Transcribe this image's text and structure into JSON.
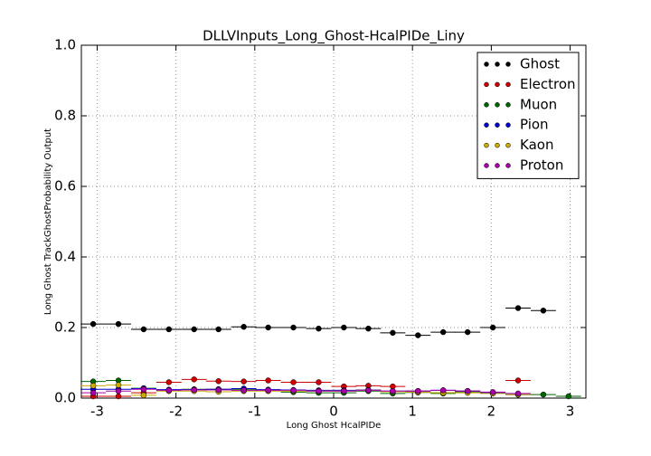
{
  "chart_data": {
    "type": "scatter",
    "title": "DLLVInputs_Long_Ghost-HcalPIDe_Liny",
    "x_label": "Long Ghost HcalPIDe",
    "y_label": "Long Ghost TrackGhostProbability Output",
    "x": [
      -3.05,
      -2.73,
      -2.41,
      -2.09,
      -1.77,
      -1.46,
      -1.14,
      -0.83,
      -0.51,
      -0.19,
      0.13,
      0.44,
      0.75,
      1.07,
      1.39,
      1.7,
      2.02,
      2.34,
      2.66,
      2.98
    ],
    "xerr": 0.16,
    "series": [
      {
        "name": "Ghost",
        "color": "#000000",
        "values": [
          0.21,
          0.21,
          0.195,
          0.195,
          0.195,
          0.195,
          0.202,
          0.2,
          0.2,
          0.197,
          0.2,
          0.197,
          0.185,
          0.178,
          0.187,
          0.187,
          0.2,
          0.255,
          0.248,
          null
        ]
      },
      {
        "name": "Electron",
        "color": "#cc0000",
        "values": [
          0.005,
          0.005,
          0.015,
          0.045,
          0.053,
          0.048,
          0.047,
          0.05,
          0.045,
          0.045,
          0.033,
          0.035,
          0.033,
          0.02,
          0.015,
          0.02,
          0.015,
          0.05,
          null,
          null
        ]
      },
      {
        "name": "Muon",
        "color": "#006600",
        "values": [
          0.047,
          0.05,
          0.028,
          0.022,
          0.025,
          0.025,
          0.025,
          0.022,
          0.017,
          0.015,
          0.015,
          0.02,
          0.013,
          0.016,
          0.013,
          0.018,
          0.014,
          0.01,
          0.01,
          0.005
        ]
      },
      {
        "name": "Pion",
        "color": "#0000cc",
        "values": [
          0.025,
          0.025,
          0.027,
          0.024,
          0.024,
          0.025,
          0.027,
          0.024,
          0.023,
          0.022,
          0.022,
          0.023,
          0.02,
          0.02,
          0.022,
          0.02,
          0.015,
          0.01,
          null,
          null
        ]
      },
      {
        "name": "Kaon",
        "color": "#ccaa00",
        "values": [
          0.035,
          0.037,
          0.008,
          0.02,
          0.02,
          0.018,
          0.02,
          0.02,
          0.02,
          0.02,
          0.02,
          0.022,
          0.018,
          0.017,
          0.015,
          0.015,
          0.013,
          0.01,
          null,
          null
        ]
      },
      {
        "name": "Proton",
        "color": "#aa00aa",
        "values": [
          0.015,
          0.02,
          0.025,
          0.022,
          0.023,
          0.023,
          0.022,
          0.022,
          0.022,
          0.02,
          0.02,
          0.022,
          0.02,
          0.02,
          0.022,
          0.02,
          0.017,
          0.013,
          null,
          null
        ]
      }
    ],
    "xlim": [
      -3.2,
      3.2
    ],
    "ylim": [
      0,
      1
    ],
    "xticks": [
      -3,
      -2,
      -1,
      0,
      1,
      2,
      3
    ],
    "yticks": [
      {
        "value": 0,
        "label": "0.0"
      },
      {
        "value": 0.2,
        "label": "0.2"
      },
      {
        "value": 0.4,
        "label": "0.4"
      },
      {
        "value": 0.6,
        "label": "0.6"
      },
      {
        "value": 0.8,
        "label": "0.8"
      },
      {
        "value": 1,
        "label": "1.0"
      }
    ],
    "grid": true,
    "legend": "upper right"
  }
}
